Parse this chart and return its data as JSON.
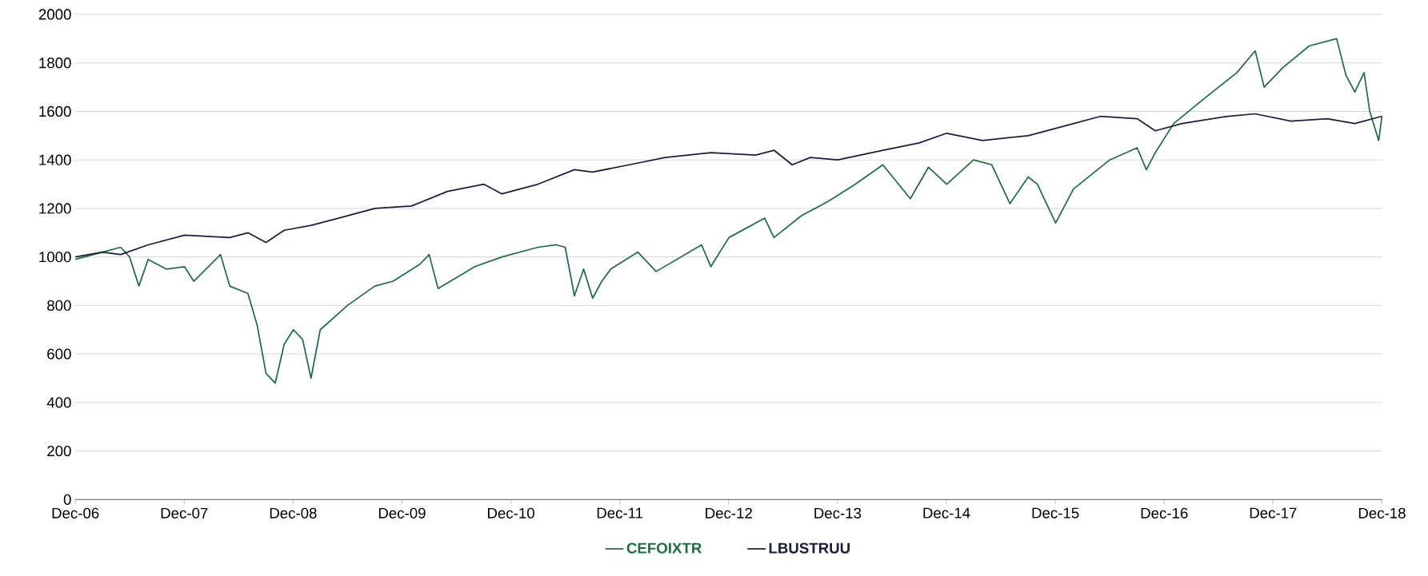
{
  "chart_data": {
    "type": "line",
    "xlim": [
      "2006-12-31",
      "2018-12-31"
    ],
    "ylim": [
      0,
      2000
    ],
    "xticks": [
      {
        "value": "2006-12-31",
        "label": "Dec-06"
      },
      {
        "value": "2007-12-31",
        "label": "Dec-07"
      },
      {
        "value": "2008-12-31",
        "label": "Dec-08"
      },
      {
        "value": "2009-12-31",
        "label": "Dec-09"
      },
      {
        "value": "2010-12-31",
        "label": "Dec-10"
      },
      {
        "value": "2011-12-31",
        "label": "Dec-11"
      },
      {
        "value": "2012-12-31",
        "label": "Dec-12"
      },
      {
        "value": "2013-12-31",
        "label": "Dec-13"
      },
      {
        "value": "2014-12-31",
        "label": "Dec-14"
      },
      {
        "value": "2015-12-31",
        "label": "Dec-15"
      },
      {
        "value": "2016-12-31",
        "label": "Dec-16"
      },
      {
        "value": "2017-12-31",
        "label": "Dec-17"
      },
      {
        "value": "2018-12-31",
        "label": "Dec-18"
      }
    ],
    "yticks": [
      0,
      200,
      400,
      600,
      800,
      1000,
      1200,
      1400,
      1600,
      1800,
      2000
    ],
    "grid": "y",
    "legend": "bottom",
    "marker": "none",
    "line_style": "solid",
    "series": [
      {
        "name": "CEFOIXTR",
        "color": "#1e6e42",
        "x": [
          "2006-12-31",
          "2007-04-01",
          "2007-06-01",
          "2007-07-01",
          "2007-08-01",
          "2007-09-01",
          "2007-11-01",
          "2008-01-01",
          "2008-02-01",
          "2008-05-01",
          "2008-06-01",
          "2008-08-01",
          "2008-09-01",
          "2008-10-01",
          "2008-11-01",
          "2008-12-01",
          "2009-01-01",
          "2009-02-01",
          "2009-03-01",
          "2009-04-01",
          "2009-07-01",
          "2009-10-01",
          "2009-12-01",
          "2010-03-01",
          "2010-04-01",
          "2010-05-01",
          "2010-09-01",
          "2010-12-01",
          "2011-04-01",
          "2011-06-01",
          "2011-07-01",
          "2011-08-01",
          "2011-09-01",
          "2011-10-01",
          "2011-11-01",
          "2011-12-01",
          "2012-03-01",
          "2012-05-01",
          "2012-10-01",
          "2012-11-01",
          "2013-01-01",
          "2013-05-01",
          "2013-06-01",
          "2013-09-01",
          "2013-12-01",
          "2014-03-01",
          "2014-06-01",
          "2014-09-01",
          "2014-11-01",
          "2015-01-01",
          "2015-04-01",
          "2015-06-01",
          "2015-08-01",
          "2015-10-01",
          "2015-11-01",
          "2016-01-01",
          "2016-03-01",
          "2016-07-01",
          "2016-10-01",
          "2016-11-01",
          "2016-12-01",
          "2017-02-01",
          "2017-05-01",
          "2017-07-01",
          "2017-09-01",
          "2017-11-01",
          "2017-12-01",
          "2018-02-01",
          "2018-05-01",
          "2018-08-01",
          "2018-09-01",
          "2018-10-01",
          "2018-11-01",
          "2018-11-20",
          "2018-12-20",
          "2018-12-31"
        ],
        "values": [
          990,
          1020,
          1040,
          1000,
          880,
          990,
          950,
          960,
          900,
          1010,
          880,
          850,
          720,
          520,
          480,
          640,
          700,
          660,
          500,
          700,
          800,
          880,
          900,
          970,
          1010,
          870,
          960,
          1000,
          1040,
          1050,
          1040,
          840,
          950,
          830,
          900,
          950,
          1020,
          940,
          1050,
          960,
          1080,
          1160,
          1080,
          1170,
          1230,
          1300,
          1380,
          1240,
          1370,
          1300,
          1400,
          1380,
          1220,
          1330,
          1300,
          1140,
          1280,
          1400,
          1450,
          1360,
          1430,
          1550,
          1640,
          1700,
          1760,
          1850,
          1700,
          1780,
          1870,
          1900,
          1750,
          1680,
          1760,
          1600,
          1480,
          1580
        ]
      },
      {
        "name": "LBUSTRUU",
        "color": "#1a1d3d",
        "x": [
          "2006-12-31",
          "2007-04-01",
          "2007-06-01",
          "2007-09-01",
          "2008-01-01",
          "2008-06-01",
          "2008-08-01",
          "2008-10-01",
          "2008-12-01",
          "2009-03-01",
          "2009-06-01",
          "2009-10-01",
          "2010-02-01",
          "2010-06-01",
          "2010-10-01",
          "2010-12-01",
          "2011-04-01",
          "2011-08-01",
          "2011-10-01",
          "2012-02-01",
          "2012-06-01",
          "2012-11-01",
          "2013-04-01",
          "2013-06-01",
          "2013-08-01",
          "2013-10-01",
          "2014-01-01",
          "2014-06-01",
          "2014-10-01",
          "2015-01-01",
          "2015-05-01",
          "2015-10-01",
          "2016-02-01",
          "2016-06-01",
          "2016-10-01",
          "2016-12-01",
          "2017-03-01",
          "2017-08-01",
          "2017-11-01",
          "2018-03-01",
          "2018-07-01",
          "2018-10-01",
          "2018-12-31"
        ],
        "values": [
          1000,
          1020,
          1010,
          1050,
          1090,
          1080,
          1100,
          1060,
          1110,
          1130,
          1160,
          1200,
          1210,
          1270,
          1300,
          1260,
          1300,
          1360,
          1350,
          1380,
          1410,
          1430,
          1420,
          1440,
          1380,
          1410,
          1400,
          1440,
          1470,
          1510,
          1480,
          1500,
          1540,
          1580,
          1570,
          1520,
          1550,
          1580,
          1590,
          1560,
          1570,
          1550,
          1580
        ]
      }
    ]
  }
}
